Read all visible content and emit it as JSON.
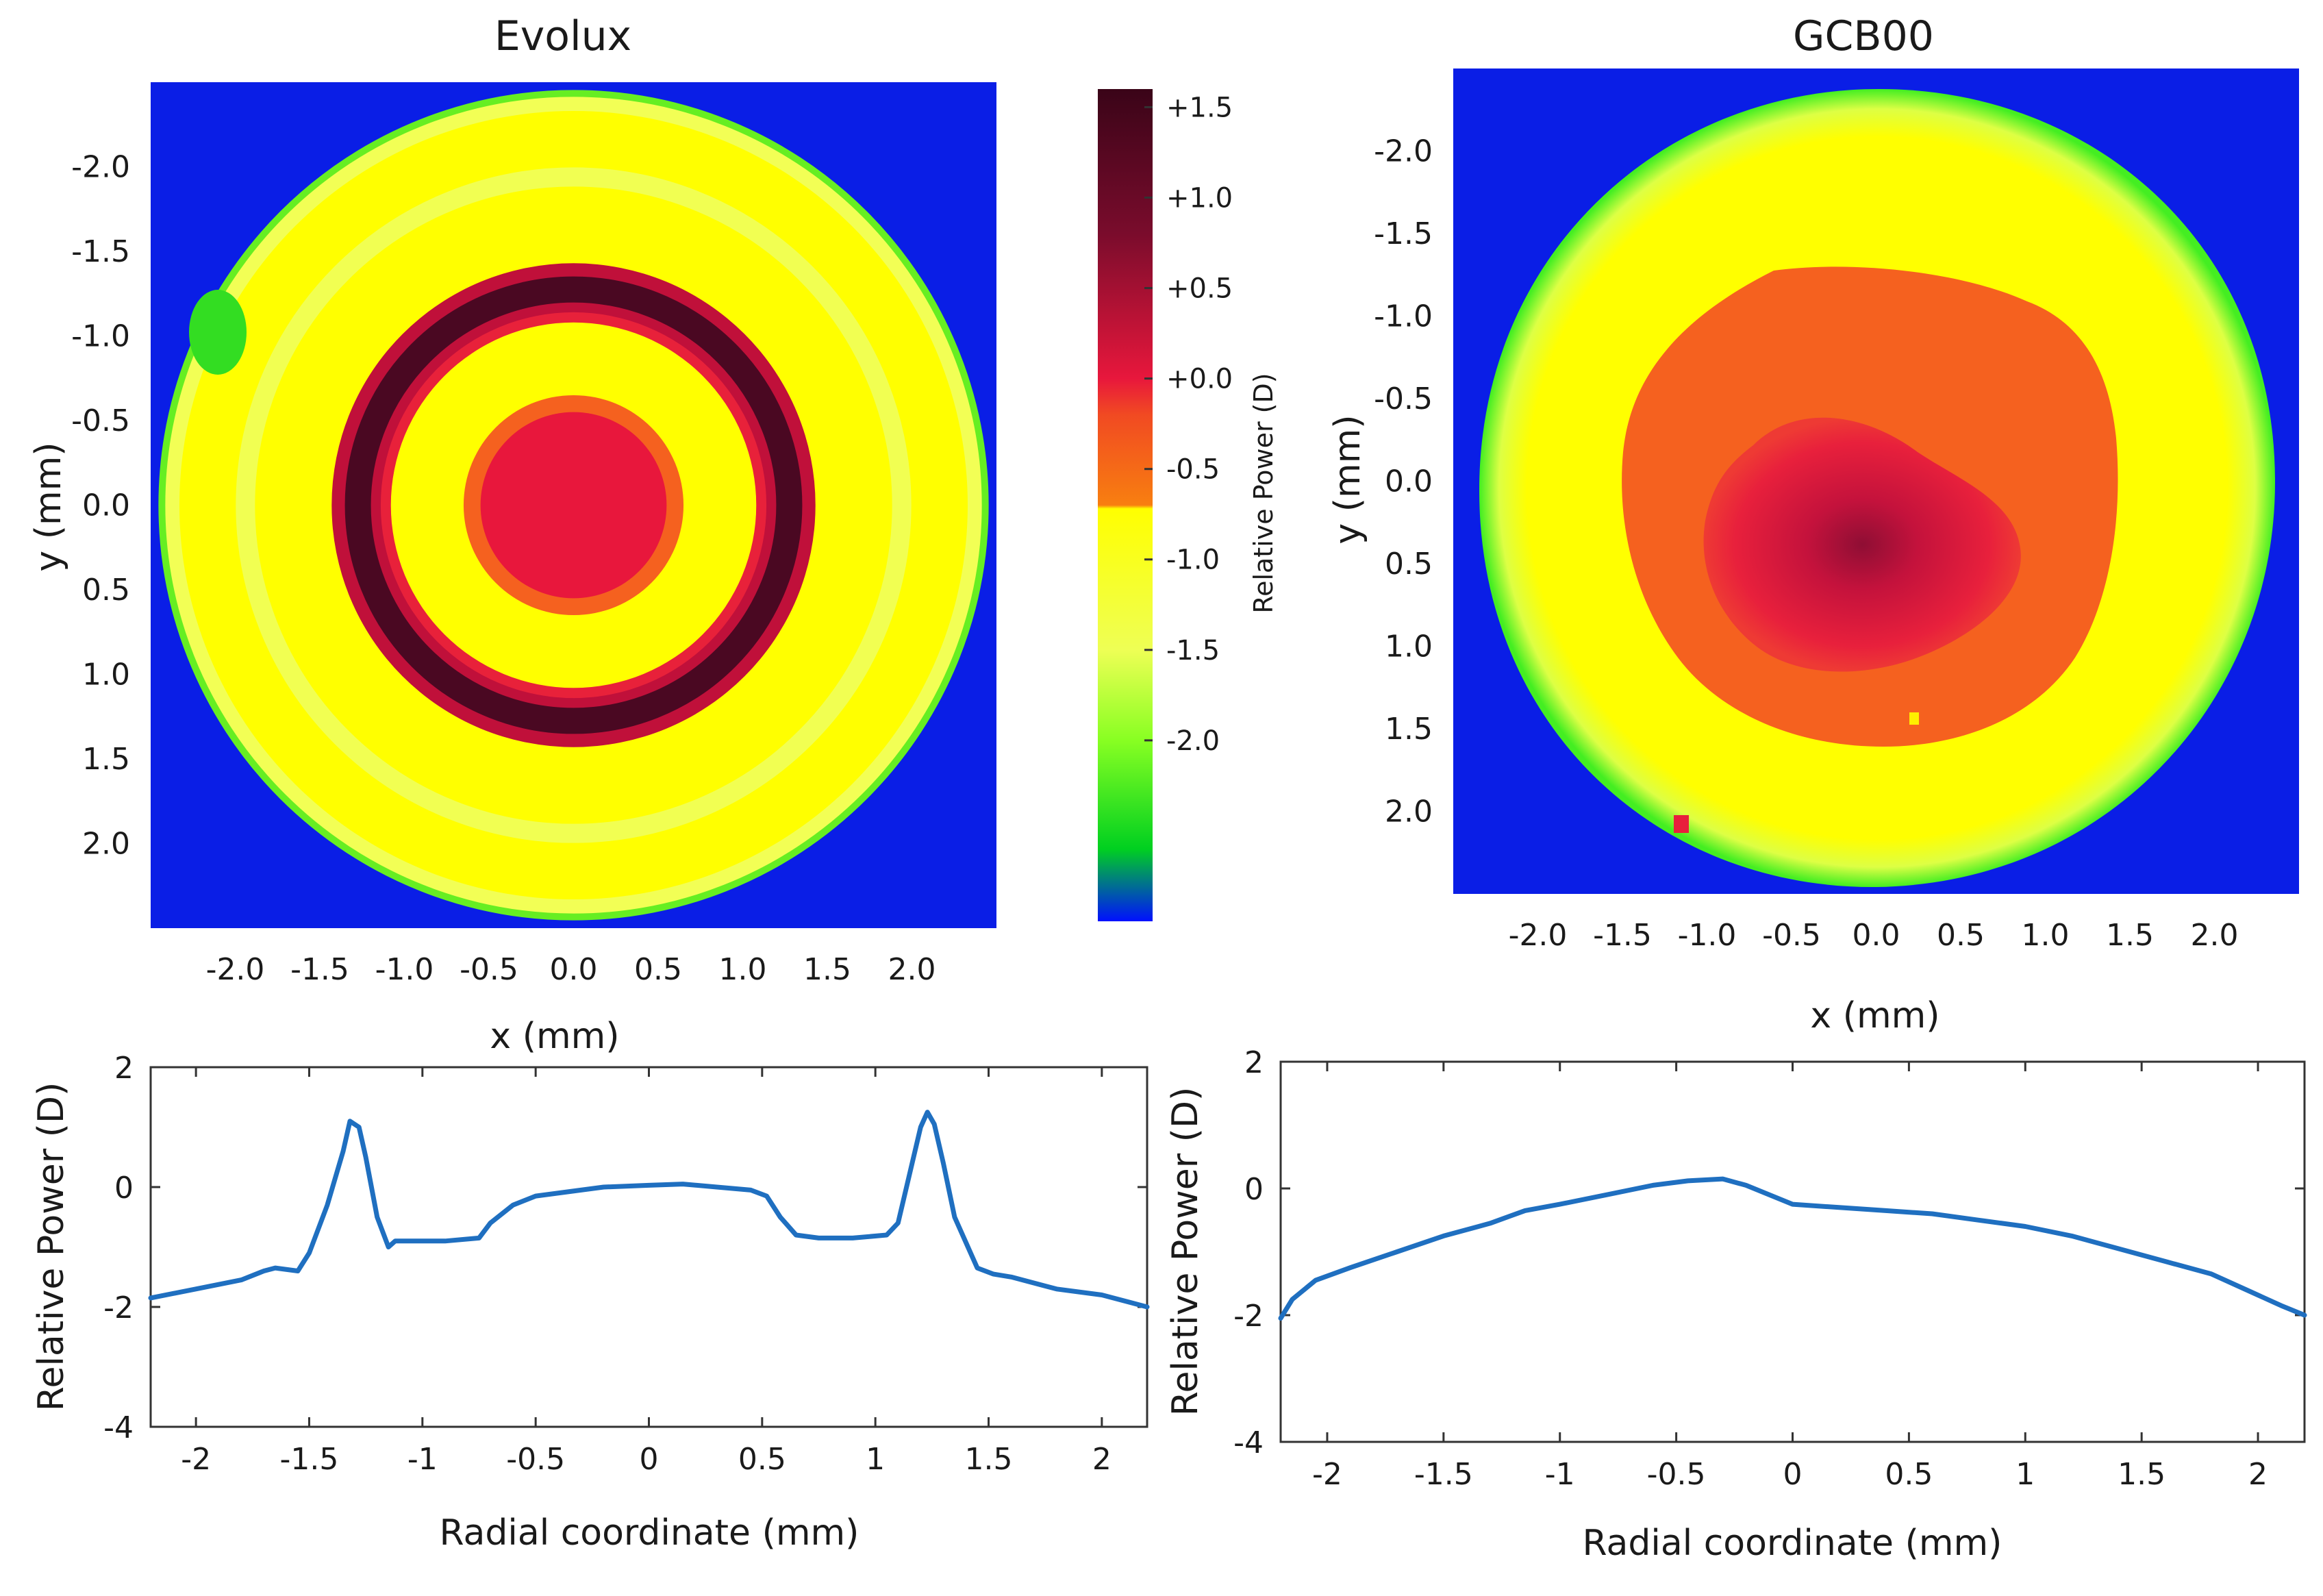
{
  "colors": {
    "background_outside": "#0a1ee6",
    "ring_dark": "#4a0822",
    "ring_mid": "#a8103a",
    "center_red": "#e8173c",
    "orange": "#f5611f",
    "yellow": "#ffff00",
    "yellow_green": "#eeff55",
    "green": "#22dd22",
    "curve": "#1f6fc0"
  },
  "chart_data": [
    {
      "type": "heatmap",
      "title": "Evolux",
      "xlabel": "x (mm)",
      "ylabel": "y (mm)",
      "xlim": [
        -2.5,
        2.5
      ],
      "ylim": [
        -2.5,
        2.5
      ],
      "y_inverted": true,
      "xticks": [
        -2.0,
        -1.5,
        -1.0,
        -0.5,
        0.0,
        0.5,
        1.0,
        1.5,
        2.0
      ],
      "xtick_labels": [
        "-2.0",
        "-1.5",
        "-1.0",
        "-0.5",
        "0.0",
        "0.5",
        "1.0",
        "1.5",
        "2.0"
      ],
      "yticks": [
        -2.0,
        -1.5,
        -1.0,
        -0.5,
        0.0,
        0.5,
        1.0,
        1.5,
        2.0
      ],
      "ytick_labels": [
        "-2.0",
        "-1.5",
        "-1.0",
        "-0.5",
        "0.0",
        "0.5",
        "1.0",
        "1.5",
        "2.0"
      ],
      "zones_radius_mm": {
        "aperture": 2.45,
        "ring_outer": 1.43,
        "ring_inner": 1.12,
        "center_orange": 0.65,
        "center_red": 0.55
      }
    },
    {
      "type": "heatmap",
      "title": "GCB00",
      "xlabel": "x (mm)",
      "ylabel": "y (mm)",
      "xlim": [
        -2.5,
        2.5
      ],
      "ylim": [
        -2.5,
        2.5
      ],
      "y_inverted": true,
      "xticks": [
        -2.0,
        -1.5,
        -1.0,
        -0.5,
        0.0,
        0.5,
        1.0,
        1.5,
        2.0
      ],
      "xtick_labels": [
        "-2.0",
        "-1.5",
        "-1.0",
        "-0.5",
        "0.0",
        "0.5",
        "1.0",
        "1.5",
        "2.0"
      ],
      "yticks": [
        -2.0,
        -1.5,
        -1.0,
        -0.5,
        0.0,
        0.5,
        1.0,
        1.5,
        2.0
      ],
      "ytick_labels": [
        "-2.0",
        "-1.5",
        "-1.0",
        "-0.5",
        "0.0",
        "0.5",
        "1.0",
        "1.5",
        "2.0"
      ]
    },
    {
      "type": "colorbar",
      "label": "Relative Power (D)",
      "range": [
        -3.0,
        1.6
      ],
      "ticks": [
        1.5,
        1.0,
        0.5,
        0.0,
        -0.5,
        -1.0,
        -1.5,
        -2.0
      ],
      "tick_labels": [
        "+1.5",
        "+1.0",
        "+0.5",
        "+0.0",
        "-0.5",
        "-1.0",
        "-1.5",
        "-2.0"
      ],
      "stops": [
        {
          "value": 1.6,
          "color": "#3a0418"
        },
        {
          "value": 0.8,
          "color": "#7a0c2c"
        },
        {
          "value": 0.0,
          "color": "#e8173c"
        },
        {
          "value": -0.2,
          "color": "#f14a22"
        },
        {
          "value": -0.7,
          "color": "#f87f10"
        },
        {
          "value": -0.72,
          "color": "#ffff00"
        },
        {
          "value": -1.5,
          "color": "#eeff55"
        },
        {
          "value": -2.0,
          "color": "#88ff22"
        },
        {
          "value": -2.6,
          "color": "#00d020"
        },
        {
          "value": -3.0,
          "color": "#0010ff"
        }
      ]
    },
    {
      "type": "line",
      "xlabel": "Radial coordinate (mm)",
      "ylabel": "Relative Power (D)",
      "xlim": [
        -2.2,
        2.2
      ],
      "ylim": [
        -4,
        2
      ],
      "xticks": [
        -2,
        -1.5,
        -1,
        -0.5,
        0,
        0.5,
        1,
        1.5,
        2
      ],
      "xtick_labels": [
        "-2",
        "-1.5",
        "-1",
        "-0.5",
        "0",
        "0.5",
        "1",
        "1.5",
        "2"
      ],
      "yticks": [
        2,
        0,
        -2,
        -4
      ],
      "ytick_labels": [
        "2",
        "0",
        "-2",
        "-4"
      ],
      "series": [
        {
          "name": "Evolux",
          "x": [
            -2.2,
            -2.0,
            -1.8,
            -1.7,
            -1.65,
            -1.55,
            -1.5,
            -1.42,
            -1.35,
            -1.32,
            -1.28,
            -1.25,
            -1.2,
            -1.15,
            -1.12,
            -1.05,
            -0.9,
            -0.75,
            -0.7,
            -0.6,
            -0.5,
            -0.3,
            -0.2,
            0.0,
            0.15,
            0.3,
            0.45,
            0.52,
            0.58,
            0.65,
            0.75,
            0.9,
            1.05,
            1.1,
            1.15,
            1.2,
            1.23,
            1.26,
            1.3,
            1.35,
            1.45,
            1.52,
            1.6,
            1.8,
            2.0,
            2.2
          ],
          "y": [
            -1.85,
            -1.7,
            -1.55,
            -1.4,
            -1.35,
            -1.4,
            -1.1,
            -0.3,
            0.6,
            1.1,
            1.0,
            0.5,
            -0.5,
            -1.0,
            -0.9,
            -0.9,
            -0.9,
            -0.85,
            -0.6,
            -0.3,
            -0.15,
            -0.05,
            0.0,
            0.03,
            0.05,
            0.0,
            -0.05,
            -0.15,
            -0.5,
            -0.8,
            -0.85,
            -0.85,
            -0.8,
            -0.6,
            0.2,
            1.0,
            1.25,
            1.05,
            0.4,
            -0.5,
            -1.35,
            -1.45,
            -1.5,
            -1.7,
            -1.8,
            -2.0
          ]
        }
      ]
    },
    {
      "type": "line",
      "xlabel": "Radial coordinate (mm)",
      "ylabel": "Relative Power (D)",
      "xlim": [
        -2.2,
        2.2
      ],
      "ylim": [
        -4,
        2
      ],
      "xticks": [
        -2,
        -1.5,
        -1,
        -0.5,
        0,
        0.5,
        1,
        1.5,
        2
      ],
      "xtick_labels": [
        "-2",
        "-1.5",
        "-1",
        "-0.5",
        "0",
        "0.5",
        "1",
        "1.5",
        "2"
      ],
      "yticks": [
        2,
        0,
        -2,
        -4
      ],
      "ytick_labels": [
        "2",
        "0",
        "-2",
        "-4"
      ],
      "series": [
        {
          "name": "GCB00",
          "x": [
            -2.2,
            -2.15,
            -2.05,
            -1.9,
            -1.7,
            -1.5,
            -1.3,
            -1.15,
            -1.0,
            -0.8,
            -0.6,
            -0.45,
            -0.3,
            -0.2,
            -0.1,
            0.0,
            0.2,
            0.4,
            0.6,
            0.8,
            1.0,
            1.2,
            1.4,
            1.6,
            1.8,
            1.95,
            2.1,
            2.2
          ],
          "y": [
            -2.05,
            -1.75,
            -1.45,
            -1.25,
            -1.0,
            -0.75,
            -0.55,
            -0.35,
            -0.25,
            -0.1,
            0.05,
            0.12,
            0.15,
            0.05,
            -0.1,
            -0.25,
            -0.3,
            -0.35,
            -0.4,
            -0.5,
            -0.6,
            -0.75,
            -0.95,
            -1.15,
            -1.35,
            -1.6,
            -1.85,
            -2.0
          ]
        }
      ]
    }
  ]
}
